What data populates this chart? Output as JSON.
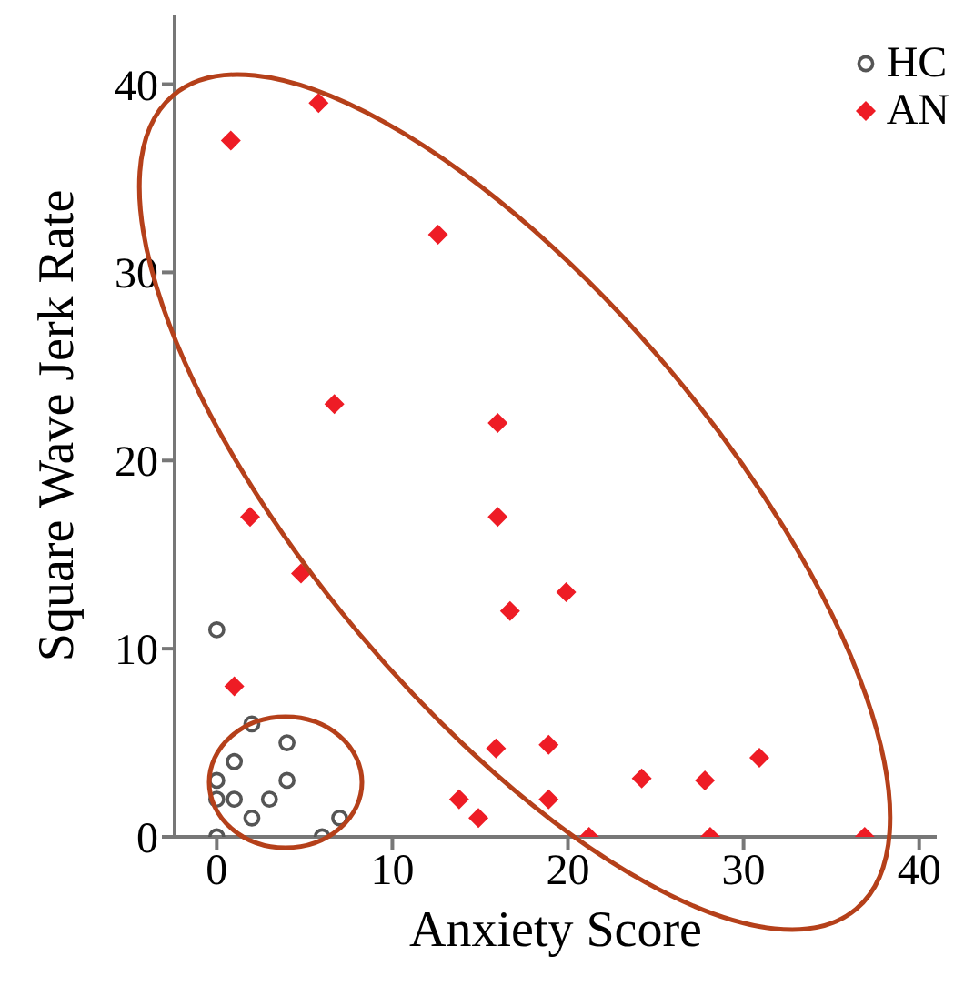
{
  "chart_data": {
    "type": "scatter",
    "xlabel": "Anxiety Score",
    "ylabel": "Square Wave Jerk Rate",
    "xlim": [
      -2.4,
      41
    ],
    "ylim": [
      0,
      43.7
    ],
    "xticks": [
      0,
      10,
      20,
      30,
      40
    ],
    "yticks": [
      0,
      10,
      20,
      30,
      40
    ],
    "grid": false,
    "legend": "top right",
    "series": [
      {
        "name": "HC",
        "color": "#555555",
        "marker": "circle",
        "x": [
          0,
          2,
          4,
          1,
          0,
          4,
          0,
          1,
          3,
          2,
          7,
          0,
          6
        ],
        "values": [
          11,
          6,
          5,
          4,
          3,
          3,
          2,
          2,
          2,
          1,
          1,
          0,
          0
        ]
      },
      {
        "name": "AN",
        "color": "#ee1c25",
        "marker": "diamond",
        "x": [
          0.8,
          5.8,
          12.6,
          6.7,
          16,
          1.9,
          16,
          4.8,
          16.7,
          19.9,
          1,
          15.9,
          18.9,
          13.8,
          18.9,
          14.9,
          21.2,
          24.2,
          27.8,
          30.9,
          28.1,
          36.9
        ],
        "values": [
          37,
          39,
          32,
          23,
          22,
          17,
          17,
          14,
          12,
          13,
          8,
          4.7,
          4.9,
          2,
          2,
          1,
          0,
          3.1,
          3,
          4.2,
          0,
          0
        ]
      }
    ]
  }
}
